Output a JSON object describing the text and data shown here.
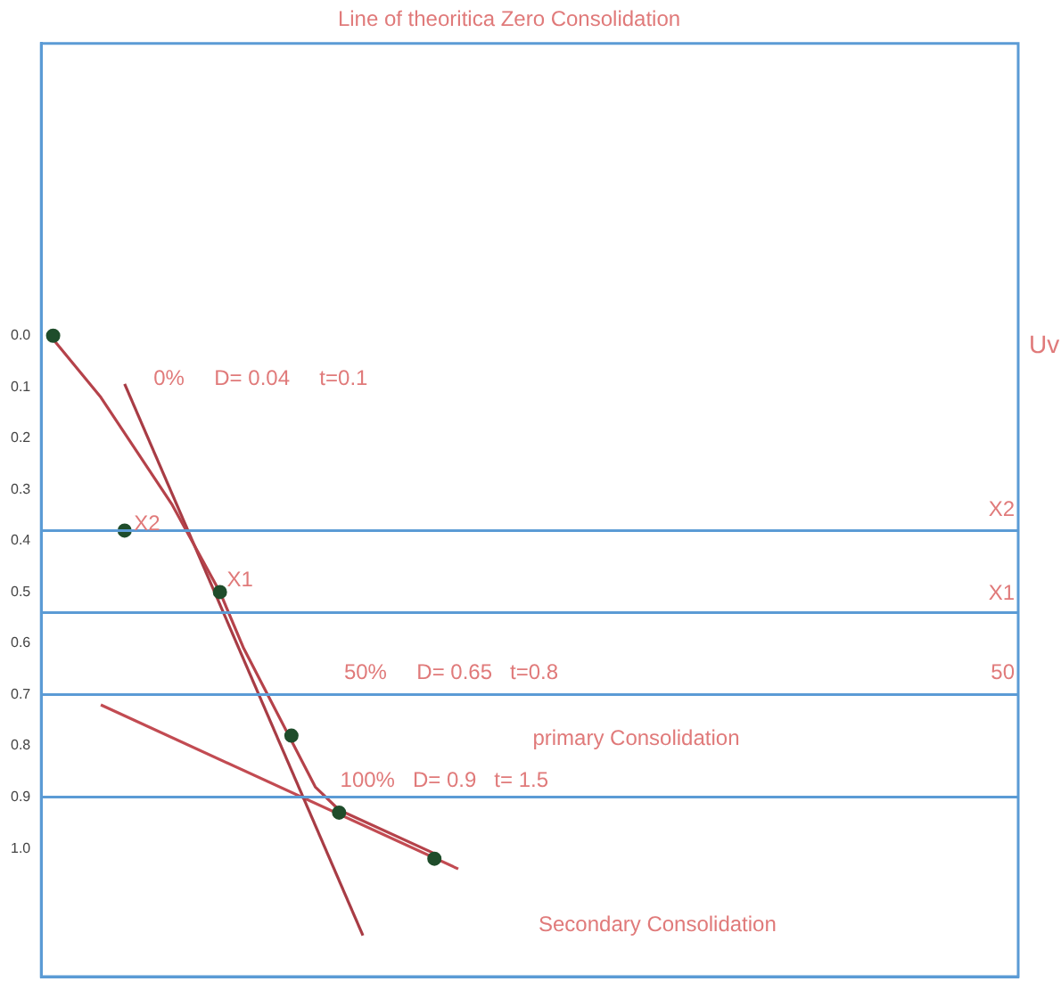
{
  "chart_data": {
    "type": "line",
    "title": "Line of theoritica Zero Consolidation",
    "ylabel": "Uv",
    "categories": [
      null,
      null,
      null,
      null,
      null,
      null,
      null,
      null,
      null,
      null,
      null,
      null,
      null,
      null,
      null,
      null,
      null,
      null,
      null,
      null,
      null,
      null,
      null,
      null,
      null,
      null,
      null,
      null,
      null,
      null,
      null,
      null,
      null,
      null,
      null,
      null,
      null,
      null,
      null,
      null,
      null
    ],
    "ylim": [
      1.25,
      -0.57
    ],
    "yticks": [
      {
        "value": 0,
        "label": "0.0"
      },
      0.1,
      0.2,
      0.3,
      0.4,
      0.5,
      0.6,
      0.7,
      0.8,
      0.9,
      {
        "value": 1,
        "label": "1.0"
      }
    ],
    "tick_labels": "y",
    "grid": false,
    "legend": false,
    "series": [
      {
        "color": "#b5424a",
        "marker": "none",
        "line_style": "solid",
        "values": [
          0.007,
          null,
          0.12,
          null,
          0.26,
          0.33,
          null,
          0.5,
          0.61,
          null,
          0.79,
          0.88,
          0.925,
          null,
          null,
          null,
          1.01,
          null,
          null,
          null,
          null,
          null,
          null,
          null,
          null,
          null,
          null,
          null,
          null,
          null,
          null,
          null,
          null,
          null,
          null,
          null,
          null,
          null,
          null,
          null,
          null
        ]
      },
      {
        "color": "#a83c45",
        "marker": "none",
        "line_style": "solid",
        "values": [
          null,
          null,
          null,
          0.094,
          null,
          null,
          null,
          null,
          null,
          null,
          null,
          null,
          null,
          1.17,
          null,
          null,
          null,
          null,
          null,
          null,
          null,
          null,
          null,
          null,
          null,
          null,
          null,
          null,
          null,
          null,
          null,
          null,
          null,
          null,
          null,
          null,
          null,
          null,
          null,
          null,
          null
        ]
      },
      {
        "color": "#c24b52",
        "marker": "none",
        "line_style": "solid",
        "values": [
          null,
          null,
          0.72,
          null,
          null,
          null,
          null,
          null,
          null,
          null,
          null,
          null,
          null,
          null,
          null,
          null,
          null,
          1.04,
          null,
          null,
          null,
          null,
          null,
          null,
          null,
          null,
          null,
          null,
          null,
          null,
          null,
          null,
          null,
          null,
          null,
          null,
          null,
          null,
          null,
          null,
          null
        ]
      },
      {
        "type": "scatter",
        "color": "#1f4d2b",
        "marker": "circle",
        "values": [
          0,
          null,
          null,
          0.38,
          null,
          null,
          null,
          0.5,
          null,
          null,
          0.78,
          null,
          0.93,
          null,
          null,
          null,
          1.02,
          null,
          null,
          null,
          null,
          null,
          null,
          null,
          null,
          null,
          null,
          null,
          null,
          null,
          null,
          null,
          null,
          null,
          null,
          null,
          null,
          null,
          null,
          null,
          null
        ]
      }
    ],
    "ref_lines": [
      {
        "axis": "y",
        "value": 0.38,
        "color": "#5b9bd5"
      },
      {
        "axis": "y",
        "value": 0.54,
        "color": "#5b9bd5"
      },
      {
        "axis": "y",
        "value": 0.7,
        "color": "#5b9bd5"
      },
      {
        "axis": "y",
        "value": 0.9,
        "color": "#5b9bd5"
      }
    ],
    "annotations": [
      "0%     D= 0.04     t=0.1",
      "X2",
      "X1",
      "50%     D= 0.65   t=0.8",
      "primary Consolidation",
      "100%   D= 0.9   t= 1.5",
      "Secondary Consolidation",
      "X2",
      "X1",
      "50"
    ]
  }
}
